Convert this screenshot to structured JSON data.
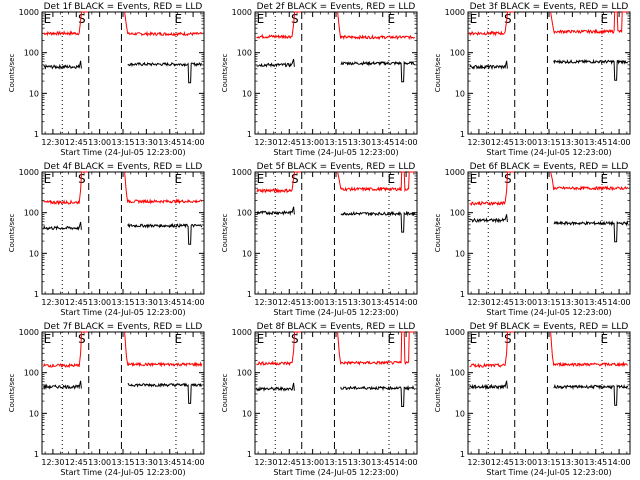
{
  "chart_data": {
    "type": "line",
    "panel_count": 9,
    "yscale": "log",
    "ylim": [
      1,
      1000
    ],
    "ylabel": "Counts/sec",
    "xlabel": "Start Time (24-Jul-05 12:23:00)",
    "x_ticks": [
      "12:30",
      "12:45",
      "13:00",
      "13:15",
      "13:30",
      "13:45",
      "14:00"
    ],
    "x_range_minutes": [
      23,
      127
    ],
    "y_ticks": [
      "1",
      "10",
      "100",
      "1000"
    ],
    "event_markers": {
      "dashed_lines_minutes": [
        53,
        74
      ],
      "dotted_lines_minutes": [
        36,
        109
      ],
      "labels": [
        {
          "text": "E",
          "at": 26
        },
        {
          "text": "S",
          "at": 48
        },
        {
          "text": "E",
          "at": 110
        }
      ]
    },
    "series_colors": {
      "events": "#000000",
      "lld": "#ff0000"
    },
    "panels": [
      {
        "title": "Det 1f BLACK = Events, RED = LLD",
        "red_level": 300,
        "black_level": 45,
        "red_gap_level": 1000,
        "tail_red": 290,
        "tail_black": 52
      },
      {
        "title": "Det 2f BLACK = Events, RED = LLD",
        "red_level": 250,
        "black_level": 50,
        "red_gap_level": 1000,
        "tail_red": 240,
        "tail_black": 55
      },
      {
        "title": "Det 3f BLACK = Events, RED = LLD",
        "red_level": 300,
        "black_level": 45,
        "red_gap_level": 1000,
        "tail_red": 330,
        "tail_black": 60
      },
      {
        "title": "Det 4f BLACK = Events, RED = LLD",
        "red_level": 180,
        "black_level": 42,
        "red_gap_level": 1000,
        "tail_red": 190,
        "tail_black": 48
      },
      {
        "title": "Det 5f BLACK = Events, RED = LLD",
        "red_level": 350,
        "black_level": 100,
        "red_gap_level": 1000,
        "tail_red": 380,
        "tail_black": 95
      },
      {
        "title": "Det 6f BLACK = Events, RED = LLD",
        "red_level": 170,
        "black_level": 65,
        "red_gap_level": 1000,
        "tail_red": 400,
        "tail_black": 55
      },
      {
        "title": "Det 7f BLACK = Events, RED = LLD",
        "red_level": 150,
        "black_level": 45,
        "red_gap_level": 1000,
        "tail_red": 160,
        "tail_black": 50
      },
      {
        "title": "Det 8f BLACK = Events, RED = LLD",
        "red_level": 170,
        "black_level": 40,
        "red_gap_level": 1000,
        "tail_red": 175,
        "tail_black": 42
      },
      {
        "title": "Det 9f BLACK = Events, RED = LLD",
        "red_level": 150,
        "black_level": 45,
        "red_gap_level": 1000,
        "tail_red": 160,
        "tail_black": 45
      }
    ]
  }
}
